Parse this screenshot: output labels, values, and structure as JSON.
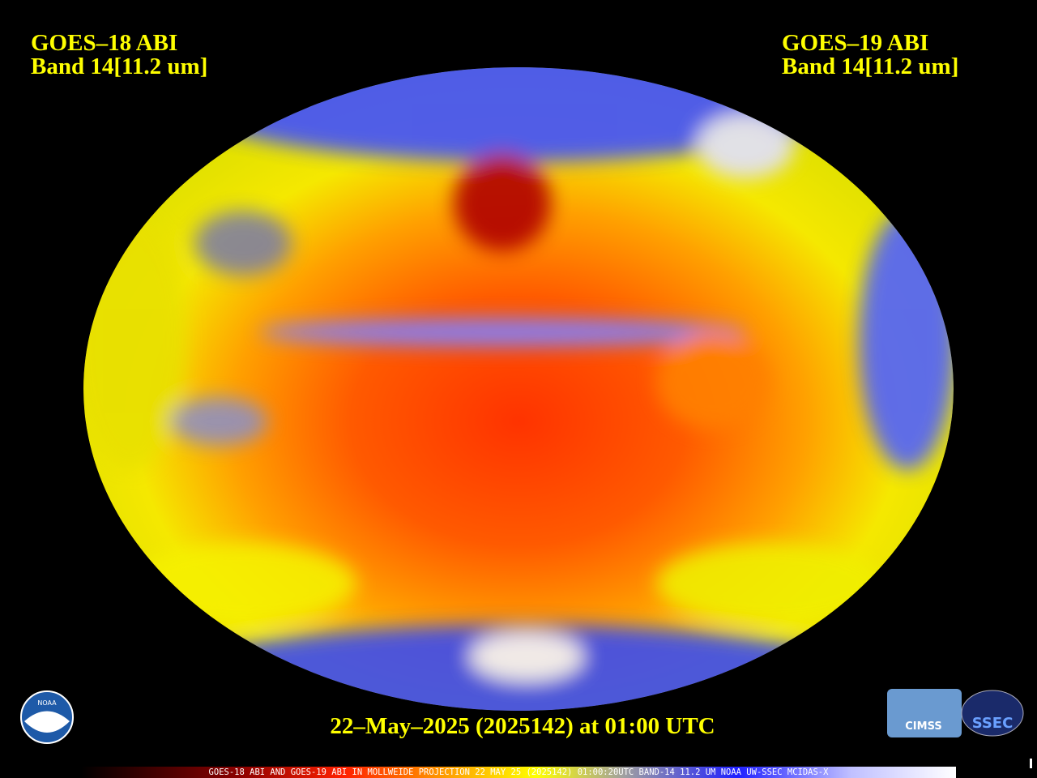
{
  "header": {
    "left": {
      "title": "GOES–18 ABI",
      "band": "Band 14[11.2 um]"
    },
    "right": {
      "title": "GOES–19 ABI",
      "band": "Band 14[11.2 um]"
    }
  },
  "timestamp": "22–May–2025 (2025142) at 01:00 UTC",
  "footer": "GOES-18 ABI AND GOES-19 ABI IN MOLLWEIDE PROJECTION 22 MAY 25 (2025142) 01:00:20UTC BAND-14 11.2 UM NOAA UW-SSEC MCIDAS-X",
  "logos": [
    "NOAA",
    "CIMSS",
    "SSEC"
  ]
}
